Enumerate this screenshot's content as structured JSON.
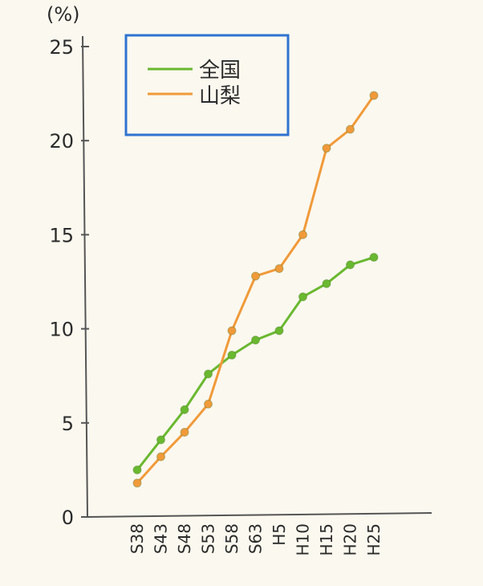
{
  "chart_data": {
    "type": "line",
    "y_unit_label": "(%)",
    "x": [
      "S38",
      "S43",
      "S48",
      "S53",
      "S58",
      "S63",
      "H5",
      "H10",
      "H15",
      "H20",
      "H25"
    ],
    "x_tick_labels": [
      "S38",
      "S43",
      "S48",
      "S53",
      "S58",
      "S63",
      "H5",
      "H10",
      "H15",
      "H20",
      "H25"
    ],
    "ylim": [
      0,
      25
    ],
    "y_ticks": [
      0,
      5,
      10,
      15,
      20,
      25
    ],
    "grid": false,
    "legend_position": "top-left",
    "series": [
      {
        "name": "全国",
        "color": "#6ab830",
        "values": [
          2.5,
          4.1,
          5.7,
          7.6,
          8.6,
          9.4,
          9.9,
          11.7,
          12.4,
          13.4,
          13.8
        ]
      },
      {
        "name": "山梨",
        "color": "#f09a3a",
        "values": [
          1.8,
          3.2,
          4.5,
          6.0,
          9.9,
          12.8,
          13.2,
          15.0,
          19.6,
          20.6,
          22.4
        ]
      }
    ]
  }
}
